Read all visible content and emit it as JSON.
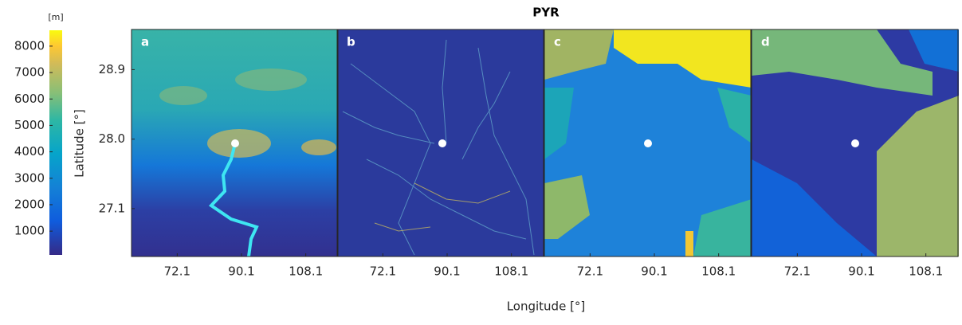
{
  "figure": {
    "title": "PYR",
    "colorbar": {
      "unit": "[m]",
      "range": [
        100,
        8600
      ],
      "ticks": [
        1000,
        2000,
        3000,
        4000,
        5000,
        6000,
        7000,
        8000
      ]
    },
    "y_label": "Latitude [°]",
    "ylim": [
      26.48,
      29.42
    ],
    "yticks": [
      28.9,
      {
        "value": 28,
        "label": "28.0"
      },
      27.1
    ],
    "x_label": "Longitude [°]",
    "xlim": [
      59.3,
      117.1
    ],
    "xticks": [
      72.1,
      90.1,
      108.1
    ],
    "panels": [
      "a",
      "b",
      "c",
      "d"
    ]
  }
}
